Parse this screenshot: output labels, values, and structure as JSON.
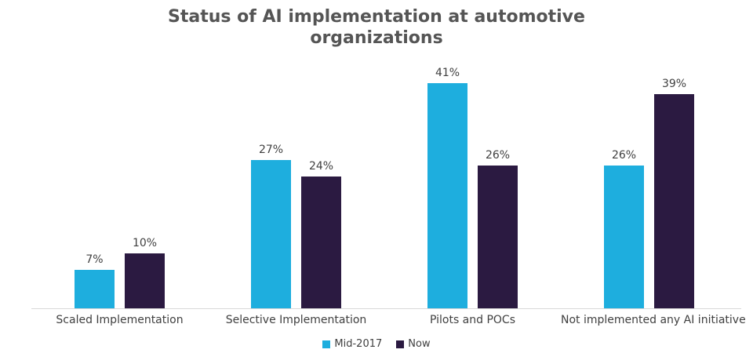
{
  "chart_data": {
    "type": "bar",
    "title": "Status of AI implementation at automotive organizations",
    "title_lines": [
      "Status of AI implementation at automotive",
      "organizations"
    ],
    "categories": [
      "Scaled Implementation",
      "Selective Implementation",
      "Pilots and POCs",
      "Not implemented any AI initiative"
    ],
    "series": [
      {
        "name": "Mid-2017",
        "color": "#1EAEDE",
        "values": [
          7,
          27,
          41,
          26
        ]
      },
      {
        "name": "Now",
        "color": "#2B1A41",
        "values": [
          10,
          24,
          26,
          39
        ]
      }
    ],
    "value_suffix": "%",
    "ylim": [
      0,
      45
    ],
    "grid": false,
    "legend_position": "bottom",
    "axis_line_color": "#D9D9D9",
    "label_color": "#404040",
    "title_color": "#555555"
  }
}
